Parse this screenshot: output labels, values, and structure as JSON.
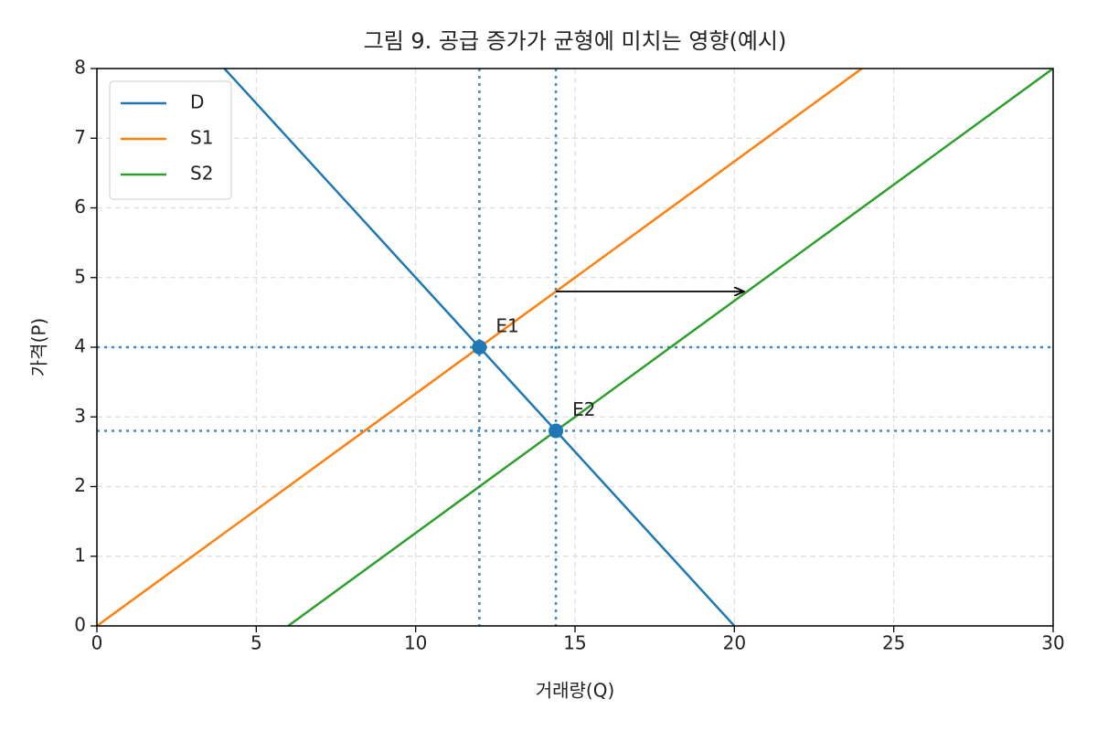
{
  "chart_data": {
    "type": "line",
    "title": "그림 9. 공급 증가가 균형에 미치는 영향(예시)",
    "xlabel": "거래량(Q)",
    "ylabel": "가격(P)",
    "series": [
      {
        "name": "D",
        "color": "#1f77b4",
        "x": [
          4,
          20
        ],
        "y": [
          8,
          0
        ]
      },
      {
        "name": "S1",
        "color": "#ff7f0e",
        "x": [
          0,
          24
        ],
        "y": [
          0,
          8
        ]
      },
      {
        "name": "S2",
        "color": "#2ca02c",
        "x": [
          6,
          30
        ],
        "y": [
          0,
          8
        ]
      }
    ],
    "points": [
      {
        "label": "E1",
        "x": 12,
        "y": 4
      },
      {
        "label": "E2",
        "x": 14.4,
        "y": 2.8
      }
    ],
    "ref_color": "#1f77b4",
    "vlines": [
      12,
      14.4
    ],
    "hlines": [
      4,
      2.8
    ],
    "arrow": {
      "x": [
        14.4,
        20.3
      ],
      "y": [
        4.8,
        4.8
      ]
    },
    "xlim": [
      0,
      30
    ],
    "ylim": [
      0,
      8
    ],
    "xticks": [
      0,
      5,
      10,
      15,
      20,
      25,
      30
    ],
    "yticks": [
      0,
      1,
      2,
      3,
      4,
      5,
      6,
      7,
      8
    ],
    "grid": true,
    "legend": "upper left"
  }
}
